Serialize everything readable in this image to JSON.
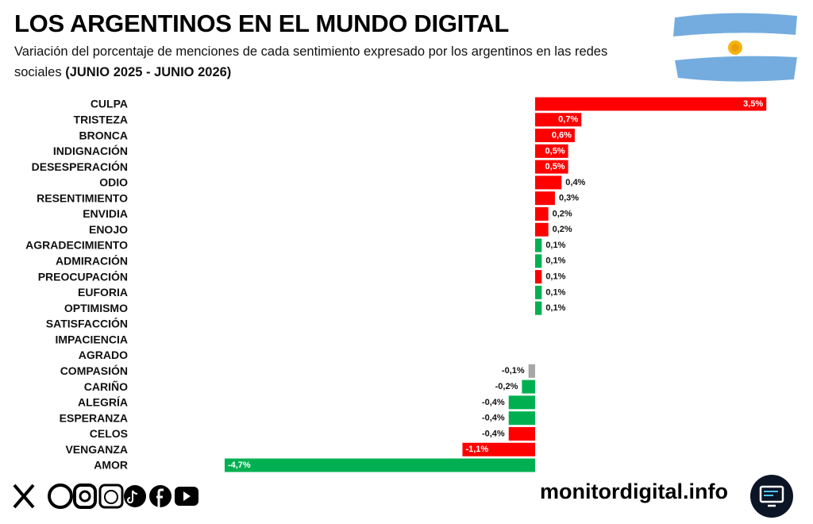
{
  "header": {
    "title": "LOS ARGENTINOS EN EL MUNDO DIGITAL",
    "subtitle": "Variación del porcentaje de menciones de cada sentimiento expresado por los argentinos en las redes sociales",
    "period": "(JUNIO 2025 - JUNIO 2026)"
  },
  "chart_data": {
    "type": "bar",
    "orientation": "horizontal",
    "categories": [
      "CULPA",
      "TRISTEZA",
      "BRONCA",
      "INDIGNACIÓN",
      "DESESPERACIÓN",
      "ODIO",
      "RESENTIMIENTO",
      "ENVIDIA",
      "ENOJO",
      "AGRADECIMIENTO",
      "ADMIRACIÓN",
      "PREOCUPACIÓN",
      "EUFORIA",
      "OPTIMISMO",
      "SATISFACCIÓN",
      "IMPACIENCIA",
      "AGRADO",
      "COMPASIÓN",
      "CARIÑO",
      "ALEGRÍA",
      "ESPERANZA",
      "CELOS",
      "VENGANZA",
      "AMOR"
    ],
    "values": [
      3.5,
      0.7,
      0.6,
      0.5,
      0.5,
      0.4,
      0.3,
      0.2,
      0.2,
      0.1,
      0.1,
      0.1,
      0.1,
      0.1,
      0,
      0,
      0,
      -0.1,
      -0.2,
      -0.4,
      -0.4,
      -0.4,
      -1.1,
      -4.7
    ],
    "value_labels": [
      "3,5%",
      "0,7%",
      "0,6%",
      "0,5%",
      "0,5%",
      "0,4%",
      "0,3%",
      "0,2%",
      "0,2%",
      "0,1%",
      "0,1%",
      "0,1%",
      "0,1%",
      "0,1%",
      null,
      null,
      null,
      "-0,1%",
      "-0,2%",
      "-0,4%",
      "-0,4%",
      "-0,4%",
      "-1,1%",
      "-4,7%"
    ],
    "colors": [
      "#ff0000",
      "#ff0000",
      "#ff0000",
      "#ff0000",
      "#ff0000",
      "#ff0000",
      "#ff0000",
      "#ff0000",
      "#ff0000",
      "#00b050",
      "#00b050",
      "#ff0000",
      "#00b050",
      "#00b050",
      "#00b050",
      "#00b050",
      "#00b050",
      "#a6a6a6",
      "#00b050",
      "#00b050",
      "#00b050",
      "#ff0000",
      "#ff0000",
      "#00b050"
    ]
  },
  "footer": {
    "site": "monitordigital.info"
  }
}
